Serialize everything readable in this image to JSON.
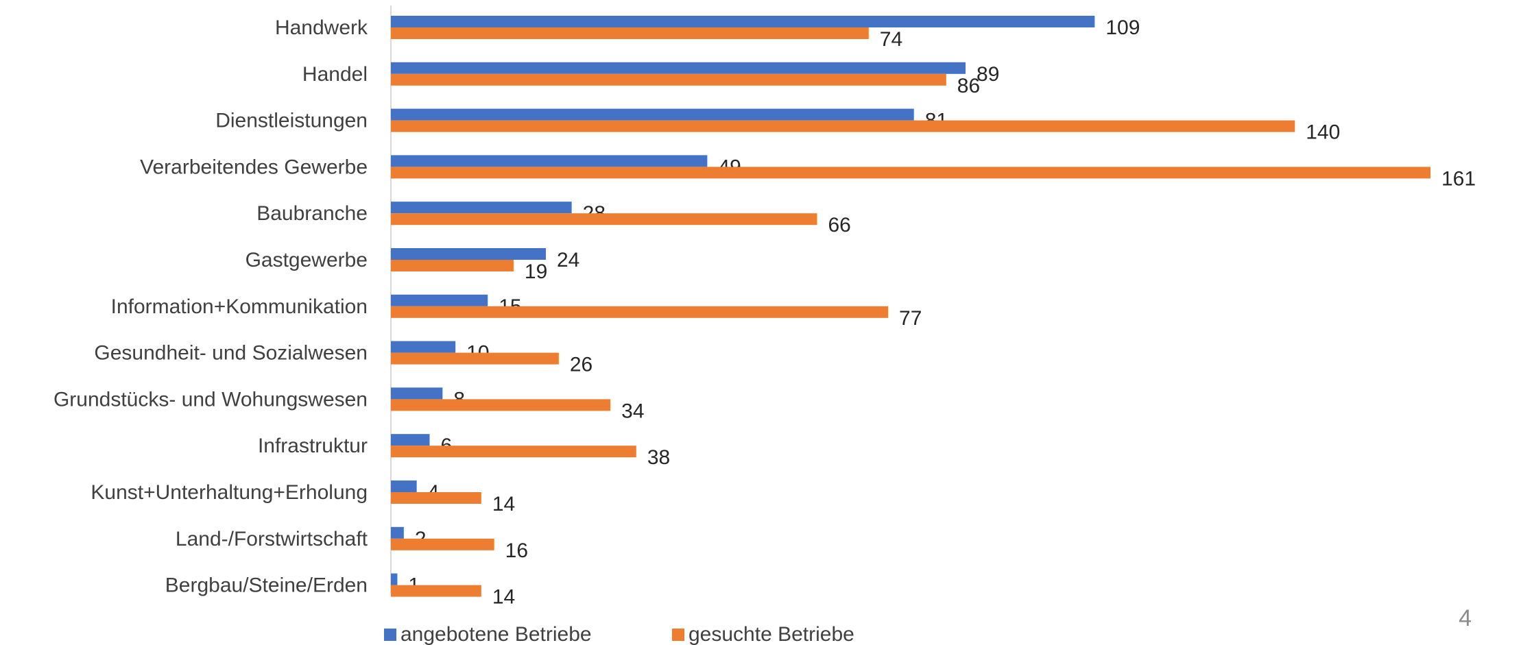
{
  "chart_data": {
    "type": "bar",
    "orientation": "horizontal",
    "categories": [
      "Handwerk",
      "Handel",
      "Dienstleistungen",
      "Verarbeitendes Gewerbe",
      "Baubranche",
      "Gastgewerbe",
      "Information+Kommunikation",
      "Gesundheit- und Sozialwesen",
      "Grundstücks- und Wohungswesen",
      "Infrastruktur",
      "Kunst+Unterhaltung+Erholung",
      "Land-/Forstwirtschaft",
      "Bergbau/Steine/Erden"
    ],
    "series": [
      {
        "name": "angebotene Betriebe",
        "color": "#4472C4",
        "values": [
          109,
          89,
          81,
          49,
          28,
          24,
          15,
          10,
          8,
          6,
          4,
          2,
          1
        ]
      },
      {
        "name": "gesuchte Betriebe",
        "color": "#ED7D31",
        "values": [
          74,
          86,
          140,
          161,
          66,
          19,
          77,
          26,
          34,
          38,
          14,
          16,
          14
        ]
      }
    ],
    "xlim": [
      0,
      161
    ],
    "grid": false,
    "legend_position": "bottom",
    "title": "",
    "xlabel": "",
    "ylabel": ""
  },
  "page_number": "4"
}
